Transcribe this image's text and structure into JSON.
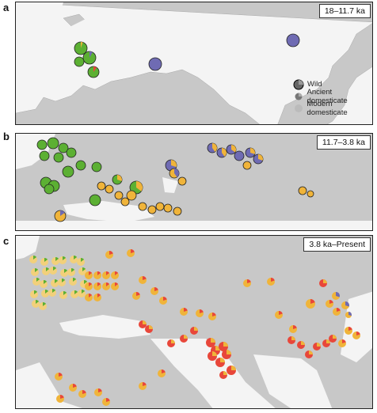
{
  "panels": [
    {
      "label": "a",
      "period": "18–11.7 ka"
    },
    {
      "label": "b",
      "period": "11.7–3.8 ka"
    },
    {
      "label": "c",
      "period": "3.8 ka–Present"
    }
  ],
  "legend": {
    "wild": "Wild",
    "ancient": "Ancient domesticate",
    "modern": "Modern domesticate"
  },
  "colors": {
    "land": "#c8c8c8",
    "sea": "#f4f4f4",
    "green": "#5cb033",
    "purple": "#6f6bb3",
    "orange": "#f0b43a",
    "red": "#e8473a",
    "light_yellow": "#f2d07a"
  }
}
